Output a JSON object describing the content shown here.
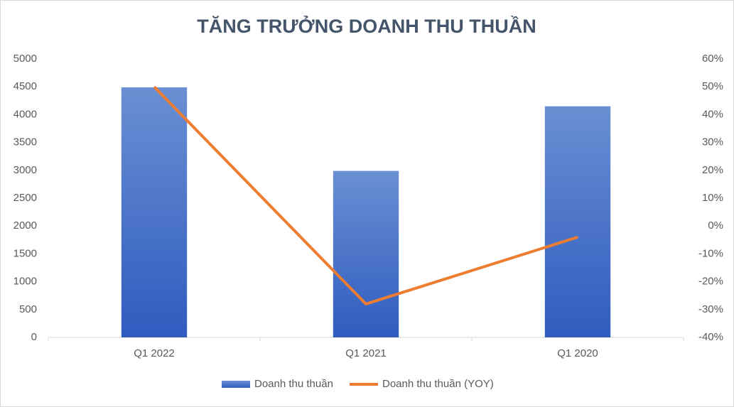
{
  "chart_data": {
    "type": "combo",
    "title": "TĂNG TRƯỞNG DOANH THU THUẦN",
    "categories": [
      "Q1 2022",
      "Q1 2021",
      "Q1 2020"
    ],
    "series": [
      {
        "name": "Doanh thu thuần",
        "type": "bar",
        "color": "#4472c4",
        "values": [
          4490,
          2990,
          4150
        ]
      },
      {
        "name": "Doanh thu thuần (YOY)",
        "type": "line",
        "axis": "y2",
        "color": "#ed7d31",
        "values": [
          50,
          -28,
          -4
        ]
      }
    ],
    "ylim": [
      0,
      5000
    ],
    "yticks": [
      0,
      500,
      1000,
      1500,
      2000,
      2500,
      3000,
      3500,
      4000,
      4500,
      5000
    ],
    "y2lim": [
      -40,
      60
    ],
    "y2ticks": [
      {
        "value": -40,
        "label": "-40%"
      },
      {
        "value": -30,
        "label": "-30%"
      },
      {
        "value": -20,
        "label": "-20%"
      },
      {
        "value": -10,
        "label": "-10%"
      },
      {
        "value": 0,
        "label": "0%"
      },
      {
        "value": 10,
        "label": "10%"
      },
      {
        "value": 20,
        "label": "20%"
      },
      {
        "value": 30,
        "label": "30%"
      },
      {
        "value": 40,
        "label": "40%"
      },
      {
        "value": 50,
        "label": "50%"
      },
      {
        "value": 60,
        "label": "60%"
      }
    ],
    "grid": false,
    "legend": "bottom"
  }
}
